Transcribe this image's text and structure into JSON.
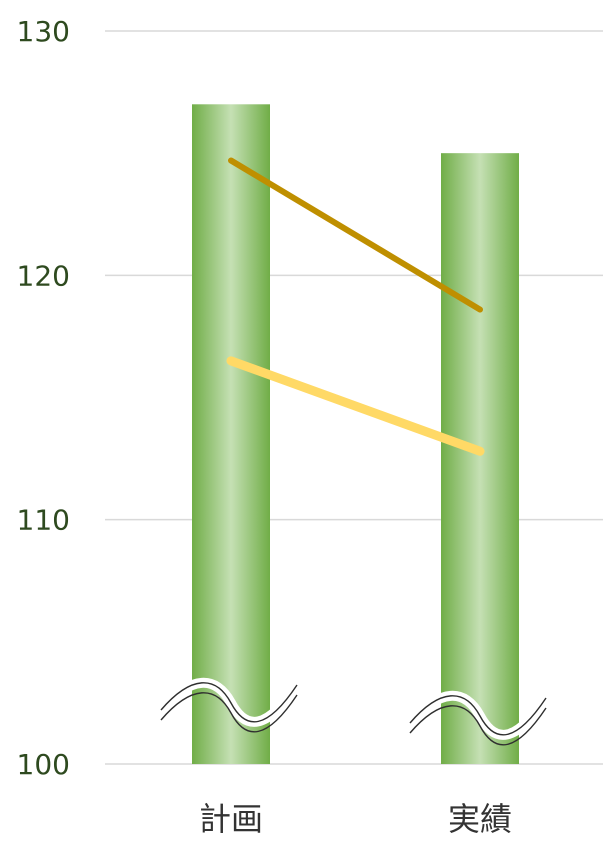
{
  "chart_data": {
    "type": "bar",
    "categories": [
      "計画",
      "実績"
    ],
    "values": [
      127,
      125
    ],
    "ylim": [
      100,
      130
    ],
    "y_ticks": [
      100,
      110,
      120,
      130
    ],
    "y_tick_labels": [
      "100",
      "110",
      "120",
      "130"
    ],
    "y_axis_break": true,
    "grid": true,
    "legend": "none",
    "lines": [
      {
        "values": [
          124.7,
          118.6
        ],
        "color": "#bf8f00"
      },
      {
        "values": [
          116.5,
          112.8
        ],
        "color": "#ffd966"
      }
    ],
    "colors": {
      "bar_edge": "#70ad47",
      "bar_center": "#c5e0b4",
      "grid": "#d9d9d9",
      "tick_text": "#2e4a1f"
    }
  }
}
